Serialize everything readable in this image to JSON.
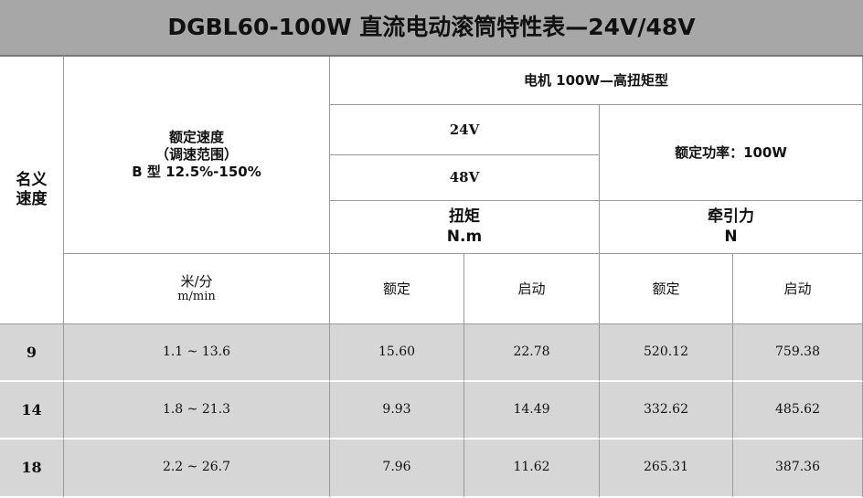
{
  "title": "DGBL60-100W 直流电动滚筒特性表—24V/48V",
  "header": {
    "nominal_speed": "名义速度",
    "rated_speed": [
      "额定速度",
      "（调速范围）",
      "B 型 12.5%-150%"
    ],
    "motor": "电机 100W—高扭矩型",
    "voltage_24": "24V",
    "voltage_48": "48V",
    "rated_power": "额定功率：100W",
    "torque": [
      "扭矩",
      "N.m"
    ],
    "traction": [
      "牵引力",
      "N"
    ],
    "speed_unit": [
      "米/分",
      "m/min"
    ],
    "rated_torque": "额定",
    "start_torque": "启动",
    "rated_traction": "额定",
    "start_traction": "启动"
  },
  "table": {
    "rows": [
      [
        "9",
        "1.1 ~ 13.6",
        "15.60",
        "22.78",
        "520.12",
        "759.38"
      ],
      [
        "14",
        "1.8 ~ 21.3",
        "9.93",
        "14.49",
        "332.62",
        "485.62"
      ],
      [
        "18",
        "2.2 ~ 26.7",
        "7.96",
        "11.62",
        "265.31",
        "387.36"
      ]
    ]
  }
}
